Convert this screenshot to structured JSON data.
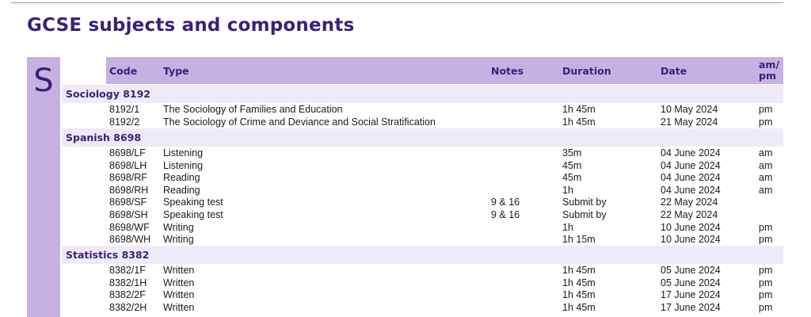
{
  "page": {
    "title": "GCSE subjects and components",
    "section_letter": "S"
  },
  "columns": {
    "code": "Code",
    "type": "Type",
    "notes": "Notes",
    "duration": "Duration",
    "date": "Date",
    "ampm": "am/ pm"
  },
  "subjects": [
    {
      "title": "Sociology  8192",
      "rows": [
        {
          "code": "8192/1",
          "type": "The Sociology of Families and Education",
          "notes": "",
          "duration": "1h 45m",
          "date": "10 May 2024",
          "ampm": "pm"
        },
        {
          "code": "8192/2",
          "type": "The Sociology of Crime and Deviance and Social Stratification",
          "notes": "",
          "duration": "1h 45m",
          "date": "21 May 2024",
          "ampm": "pm"
        }
      ]
    },
    {
      "title": "Spanish  8698",
      "rows": [
        {
          "code": "8698/LF",
          "type": "Listening",
          "notes": "",
          "duration": "35m",
          "date": "04 June 2024",
          "ampm": "am"
        },
        {
          "code": "8698/LH",
          "type": "Listening",
          "notes": "",
          "duration": "45m",
          "date": "04 June 2024",
          "ampm": "am"
        },
        {
          "code": "8698/RF",
          "type": "Reading",
          "notes": "",
          "duration": "45m",
          "date": "04 June 2024",
          "ampm": "am"
        },
        {
          "code": "8698/RH",
          "type": "Reading",
          "notes": "",
          "duration": "1h",
          "date": "04 June 2024",
          "ampm": "am"
        },
        {
          "code": "8698/SF",
          "type": "Speaking test",
          "notes": "9 & 16",
          "duration": "Submit by",
          "date": "22 May 2024",
          "ampm": ""
        },
        {
          "code": "8698/SH",
          "type": "Speaking test",
          "notes": "9 & 16",
          "duration": "Submit by",
          "date": "22 May 2024",
          "ampm": ""
        },
        {
          "code": "8698/WF",
          "type": "Writing",
          "notes": "",
          "duration": "1h",
          "date": "10 June 2024",
          "ampm": "pm"
        },
        {
          "code": "8698/WH",
          "type": "Writing",
          "notes": "",
          "duration": "1h 15m",
          "date": "10 June 2024",
          "ampm": "pm"
        }
      ]
    },
    {
      "title": "Statistics  8382",
      "rows": [
        {
          "code": "8382/1F",
          "type": "Written",
          "notes": "",
          "duration": "1h 45m",
          "date": "05 June 2024",
          "ampm": "pm"
        },
        {
          "code": "8382/1H",
          "type": "Written",
          "notes": "",
          "duration": "1h 45m",
          "date": "05 June 2024",
          "ampm": "pm"
        },
        {
          "code": "8382/2F",
          "type": "Written",
          "notes": "",
          "duration": "1h 45m",
          "date": "17 June 2024",
          "ampm": "pm"
        },
        {
          "code": "8382/2H",
          "type": "Written",
          "notes": "",
          "duration": "1h 45m",
          "date": "17 June 2024",
          "ampm": "pm"
        }
      ]
    }
  ]
}
